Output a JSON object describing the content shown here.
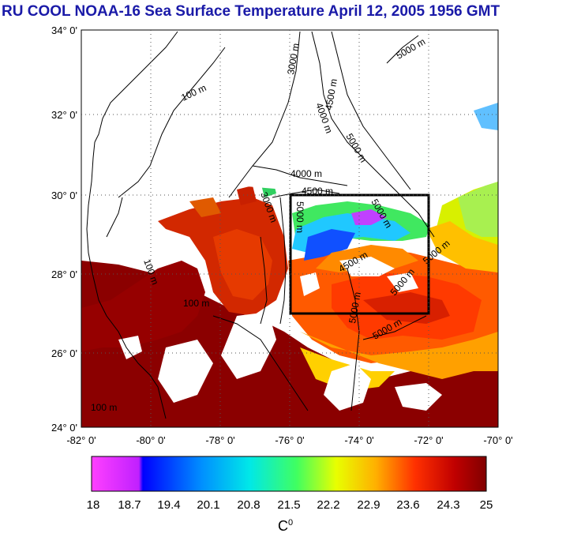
{
  "title": "RU COOL  NOAA-16 Sea Surface Temperature April 12, 2005 1956 GMT",
  "axes": {
    "lat_ticks": [
      "34° 0'",
      "32° 0'",
      "30° 0'",
      "28° 0'",
      "26° 0'",
      "24° 0'"
    ],
    "lon_ticks": [
      "-82° 0'",
      "-80° 0'",
      "-78° 0'",
      "-76° 0'",
      "-74° 0'",
      "-72° 0'",
      "-70° 0'"
    ]
  },
  "contours": [
    "100 m",
    "100 m",
    "100 m",
    "100 m",
    "3000 m",
    "3000 m",
    "4000 m",
    "4000 m",
    "4500 m",
    "4500 m",
    "4500 m",
    "5000 m",
    "5000 m",
    "5000 m",
    "5000 m",
    "5000 m",
    "5000 m",
    "5000 m",
    "5000 m"
  ],
  "colorbar": {
    "ticks": [
      "18",
      "18.7",
      "19.4",
      "20.1",
      "20.8",
      "21.5",
      "22.2",
      "22.9",
      "23.6",
      "24.3",
      "25"
    ],
    "unit": "C",
    "unit_sup": "0"
  },
  "colors": {
    "title": "#1a1aa8",
    "warm": "#8b0000",
    "hot": "#c81e00",
    "orange": "#ff7a00",
    "yellow": "#ffd400",
    "green": "#3fd84a",
    "cyan": "#1ad4e6",
    "blue": "#1040ff",
    "magenta": "#ff20ff"
  }
}
